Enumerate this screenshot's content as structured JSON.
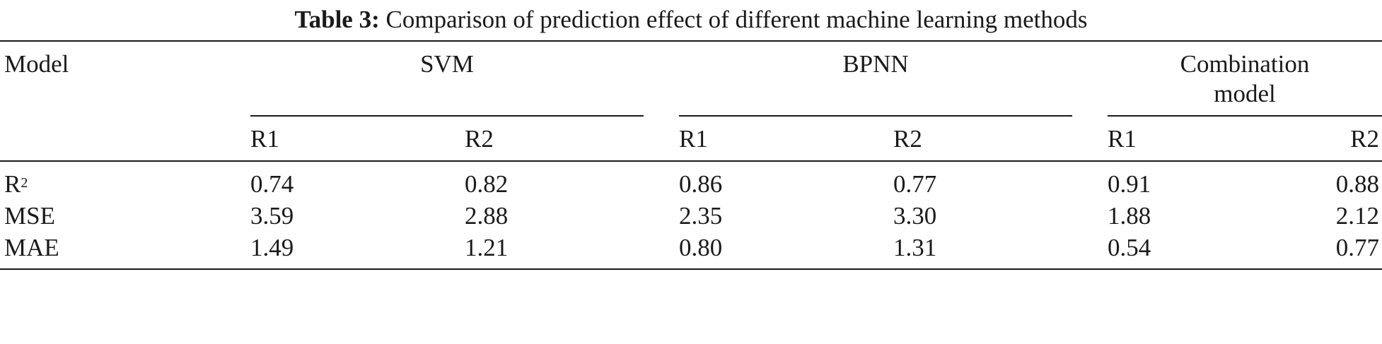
{
  "caption": {
    "label": "Table 3:",
    "text": "Comparison of prediction effect of different machine learning methods"
  },
  "header": {
    "model_label": "Model",
    "groups": [
      "SVM",
      "BPNN",
      "Combination model"
    ],
    "combination_line1": "Combination",
    "combination_line2": "model",
    "sub_columns": [
      "R1",
      "R2",
      "R1",
      "R2",
      "R1",
      "R2"
    ]
  },
  "rows": [
    {
      "metric": "R",
      "metric_sup": "2",
      "values": [
        "0.74",
        "0.82",
        "0.86",
        "0.77",
        "0.91",
        "0.88"
      ]
    },
    {
      "metric": "MSE",
      "metric_sup": "",
      "values": [
        "3.59",
        "2.88",
        "2.35",
        "3.30",
        "1.88",
        "2.12"
      ]
    },
    {
      "metric": "MAE",
      "metric_sup": "",
      "values": [
        "1.49",
        "1.21",
        "0.80",
        "1.31",
        "0.54",
        "0.77"
      ]
    }
  ]
}
